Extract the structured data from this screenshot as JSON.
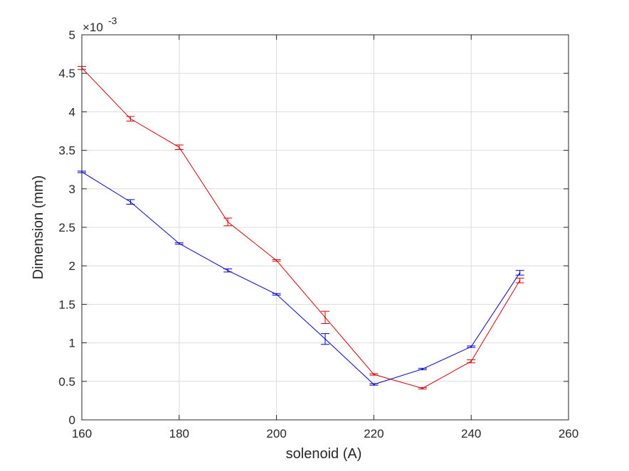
{
  "chart_data": {
    "type": "line",
    "title": "",
    "xlabel": "solenoid (A)",
    "ylabel": "Dimension (mm)",
    "y_exponent_label": "×10",
    "y_exponent_power": "-3",
    "xlim": [
      160,
      260
    ],
    "ylim": [
      0,
      5
    ],
    "x_ticks": [
      "160",
      "180",
      "200",
      "220",
      "240",
      "260"
    ],
    "y_ticks": [
      "0",
      "0.5",
      "1",
      "1.5",
      "2",
      "2.5",
      "3",
      "3.5",
      "4",
      "4.5",
      "5"
    ],
    "x_tick_values": [
      160,
      180,
      200,
      220,
      240,
      260
    ],
    "y_tick_values": [
      0,
      0.5,
      1,
      1.5,
      2,
      2.5,
      3,
      3.5,
      4,
      4.5,
      5
    ],
    "grid": true,
    "x": [
      160,
      170,
      180,
      190,
      200,
      210,
      220,
      230,
      240,
      250
    ],
    "series": [
      {
        "color": "#d40000",
        "values": [
          4.57,
          3.91,
          3.54,
          2.57,
          2.07,
          1.33,
          0.59,
          0.41,
          0.76,
          1.81
        ],
        "errors": [
          0.02,
          0.03,
          0.03,
          0.05,
          0.01,
          0.08,
          0.01,
          0.01,
          0.02,
          0.03
        ]
      },
      {
        "color": "#0000c8",
        "values": [
          3.22,
          2.83,
          2.29,
          1.94,
          1.63,
          1.05,
          0.46,
          0.66,
          0.95,
          1.91
        ],
        "errors": [
          0.01,
          0.03,
          0.01,
          0.02,
          0.01,
          0.07,
          0.01,
          0.01,
          0.01,
          0.03
        ]
      }
    ]
  }
}
